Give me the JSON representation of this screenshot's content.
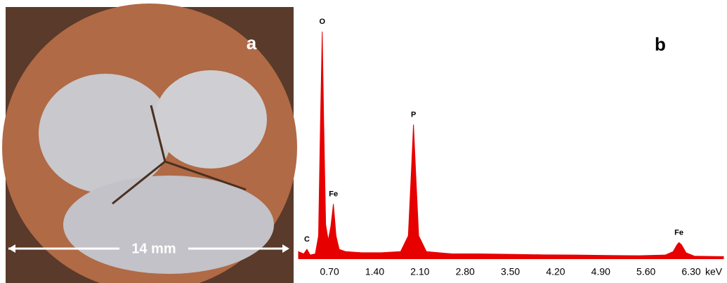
{
  "photo": {
    "panel_label": "a",
    "scale_label": "14 mm"
  },
  "chart_data": {
    "type": "area",
    "panel_label": "b",
    "x_label": "keV",
    "color": "#e60000",
    "x": [
      0.22,
      0.3,
      0.35,
      0.4,
      0.48,
      0.53,
      0.56,
      0.587,
      0.61,
      0.64,
      0.68,
      0.72,
      0.76,
      0.8,
      0.85,
      0.95,
      1.2,
      1.5,
      1.8,
      1.92,
      1.97,
      2.0,
      2.03,
      2.08,
      2.2,
      2.6,
      3.0,
      3.5,
      4.0,
      4.5,
      5.0,
      5.5,
      5.9,
      6.02,
      6.08,
      6.11,
      6.15,
      6.22,
      6.35,
      6.8
    ],
    "values": [
      3,
      2,
      4,
      1.5,
      2,
      10,
      60,
      100,
      60,
      15,
      8,
      14,
      24,
      10,
      4,
      3,
      2.5,
      2.5,
      3,
      10,
      40,
      59,
      40,
      10,
      3,
      2,
      2,
      1.8,
      1.6,
      1.5,
      1.3,
      1.2,
      1.5,
      3,
      6,
      7,
      6,
      2.5,
      1,
      0.8
    ],
    "xlim": [
      0.22,
      6.8
    ],
    "ylim": [
      0,
      100
    ],
    "xticks": [
      {
        "value": 0.7,
        "label": "0.70"
      },
      {
        "value": 1.4,
        "label": "1.40"
      },
      {
        "value": 2.1,
        "label": "2.10"
      },
      {
        "value": 2.8,
        "label": "2.80"
      },
      {
        "value": 3.5,
        "label": "3.50"
      },
      {
        "value": 4.2,
        "label": "4.20"
      },
      {
        "value": 4.9,
        "label": "4.90"
      },
      {
        "value": 5.6,
        "label": "5.60"
      },
      {
        "value": 6.3,
        "label": "6.30"
      }
    ],
    "annotations": [
      {
        "text": "C",
        "x": 0.35,
        "y": 4
      },
      {
        "text": "O",
        "x": 0.587,
        "y": 100
      },
      {
        "text": "Fe",
        "x": 0.76,
        "y": 24
      },
      {
        "text": "P",
        "x": 2.0,
        "y": 59
      },
      {
        "text": "Fe",
        "x": 6.11,
        "y": 7
      }
    ]
  }
}
